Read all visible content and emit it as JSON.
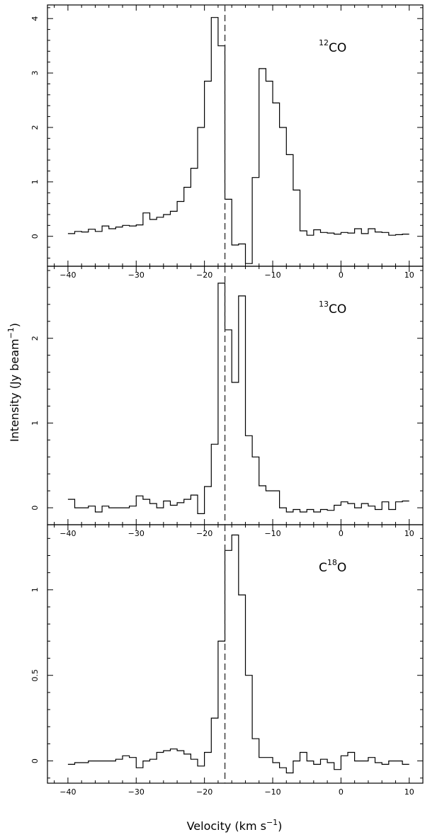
{
  "chart_data": [
    {
      "type": "line",
      "label_pre": "",
      "label_sup": "12",
      "label_post": "CO",
      "xlim": [
        -43,
        12
      ],
      "ylim": [
        -0.55,
        4.25
      ],
      "yticks": [
        0,
        1,
        2,
        3,
        4
      ],
      "ytick_labels": [
        "0",
        "1",
        "2",
        "3",
        "4"
      ],
      "step_start": -40.0,
      "step_width": 1.0,
      "intensity": [
        0.05,
        0.09,
        0.08,
        0.13,
        0.09,
        0.19,
        0.14,
        0.17,
        0.2,
        0.19,
        0.21,
        0.43,
        0.31,
        0.35,
        0.4,
        0.46,
        0.64,
        0.9,
        1.25,
        2.0,
        2.85,
        4.02,
        3.5,
        0.68,
        -0.16,
        -0.14,
        -0.5,
        1.08,
        3.08,
        2.85,
        2.45,
        2.0,
        1.5,
        0.85,
        0.1,
        0.02,
        0.12,
        0.07,
        0.06,
        0.04,
        0.07,
        0.06,
        0.14,
        0.05,
        0.14,
        0.08,
        0.07,
        0.02,
        0.03,
        0.04
      ]
    },
    {
      "type": "line",
      "label_pre": "",
      "label_sup": "13",
      "label_post": "CO",
      "xlim": [
        -43,
        12
      ],
      "ylim": [
        -0.2,
        2.85
      ],
      "yticks": [
        0,
        1,
        2
      ],
      "ytick_labels": [
        "0",
        "1",
        "2"
      ],
      "step_start": -40.0,
      "step_width": 1.0,
      "intensity": [
        0.1,
        0.0,
        0.0,
        0.02,
        -0.05,
        0.02,
        0.0,
        0.0,
        0.0,
        0.02,
        0.14,
        0.1,
        0.05,
        0.0,
        0.08,
        0.03,
        0.06,
        0.1,
        0.15,
        -0.07,
        0.25,
        0.75,
        2.65,
        2.1,
        1.48,
        2.5,
        0.85,
        0.6,
        0.26,
        0.2,
        0.2,
        0.0,
        -0.05,
        -0.02,
        -0.05,
        -0.02,
        -0.05,
        -0.02,
        -0.03,
        0.03,
        0.07,
        0.05,
        0.0,
        0.05,
        0.02,
        -0.02,
        0.07,
        -0.02,
        0.07,
        0.08
      ]
    },
    {
      "type": "line",
      "label_pre": "C",
      "label_sup": "18",
      "label_post": "O",
      "xlim": [
        -43,
        12
      ],
      "ylim": [
        -0.13,
        1.38
      ],
      "yticks": [
        0,
        0.5,
        1
      ],
      "ytick_labels": [
        "0",
        "0.5",
        "1"
      ],
      "step_start": -40.0,
      "step_width": 1.0,
      "intensity": [
        -0.02,
        -0.01,
        -0.01,
        0.0,
        0.0,
        0.0,
        0.0,
        0.01,
        0.03,
        0.02,
        -0.04,
        0.0,
        0.01,
        0.05,
        0.06,
        0.07,
        0.06,
        0.04,
        0.01,
        -0.03,
        0.05,
        0.25,
        0.7,
        1.23,
        1.32,
        0.97,
        0.5,
        0.13,
        0.02,
        0.02,
        -0.01,
        -0.04,
        -0.07,
        0.0,
        0.05,
        0.0,
        -0.02,
        0.01,
        -0.01,
        -0.05,
        0.03,
        0.05,
        0.0,
        0.0,
        0.02,
        -0.01,
        -0.02,
        0.0,
        0.0,
        -0.02
      ]
    }
  ],
  "vline_velocity": -17.0,
  "xticks": [
    -40,
    -30,
    -20,
    -10,
    0,
    10
  ],
  "xtick_labels": [
    "−40",
    "−30",
    "−20",
    "−10",
    "0",
    "10"
  ],
  "xlabel_main": "Velocity (km s",
  "xlabel_sup": "−1",
  "xlabel_end": ")",
  "ylabel_main": "Intensity (Jy beam",
  "ylabel_sup": "−1",
  "ylabel_end": ")"
}
